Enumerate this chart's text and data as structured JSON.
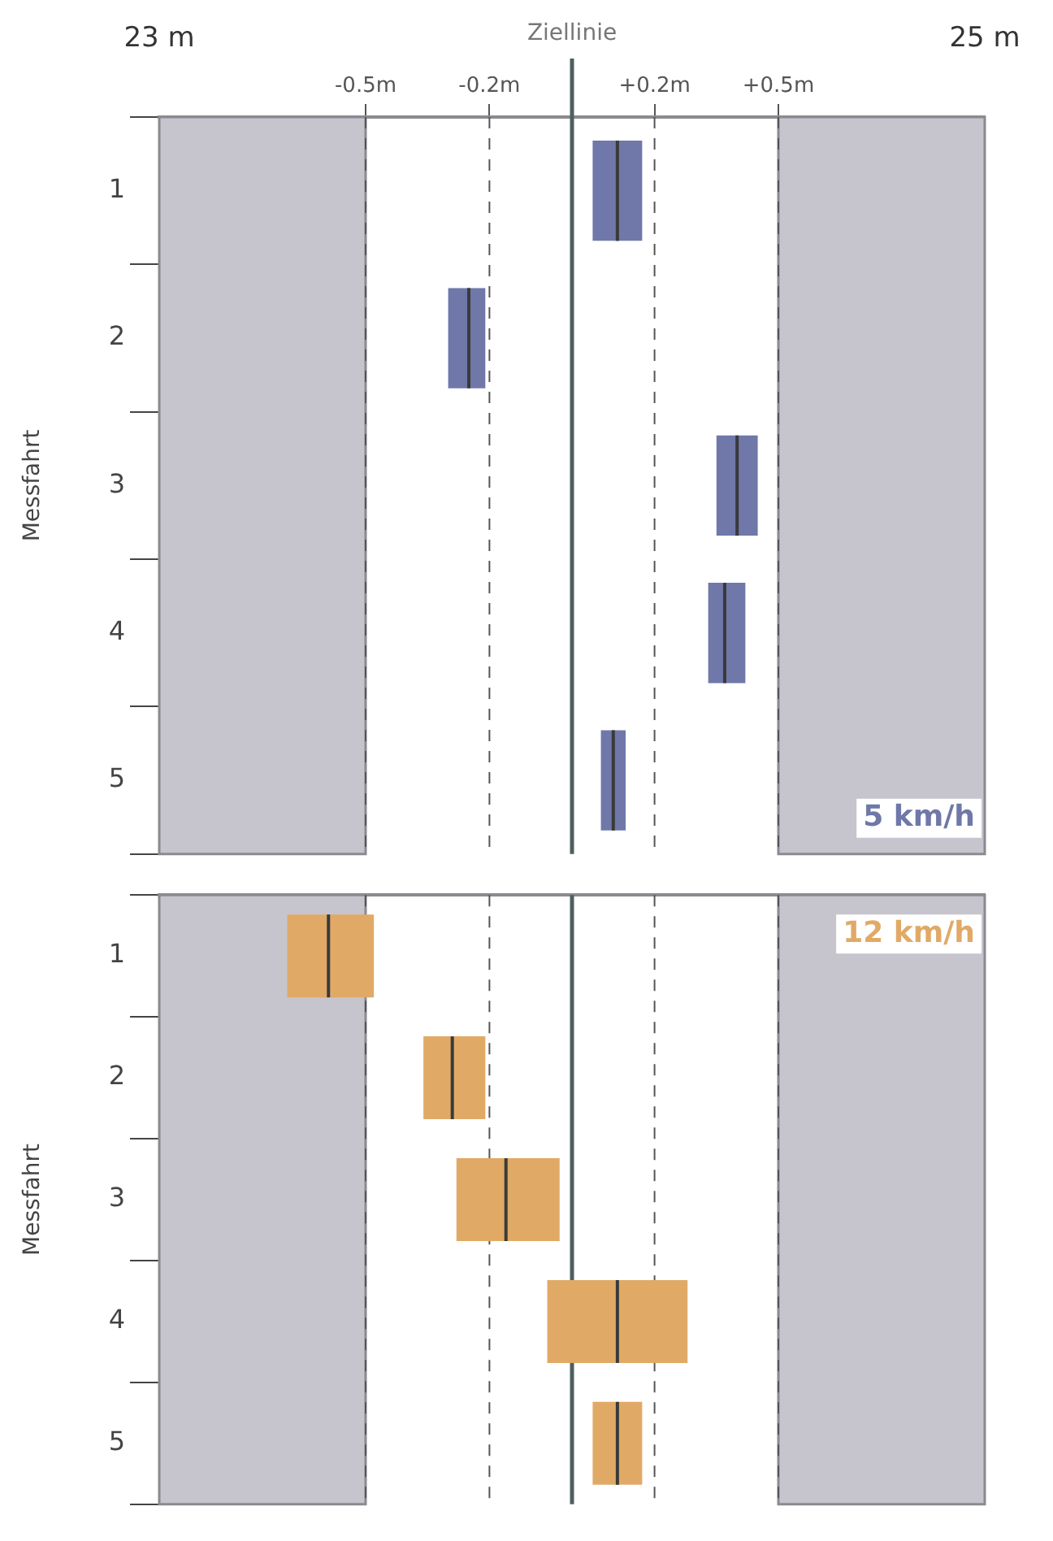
{
  "chart_data": [
    {
      "type": "box",
      "orientation": "horizontal",
      "ylabel": "Messfahrt",
      "categories": [
        "1",
        "2",
        "3",
        "4",
        "5"
      ],
      "series": [
        {
          "name": "5 km/h",
          "color": "#6f78a8",
          "boxes": [
            {
              "low": 0.05,
              "q1": 0.05,
              "median": 0.11,
              "q3": 0.17,
              "high": 0.17
            },
            {
              "low": -0.3,
              "q1": -0.3,
              "median": -0.25,
              "q3": -0.21,
              "high": -0.21
            },
            {
              "low": 0.35,
              "q1": 0.35,
              "median": 0.4,
              "q3": 0.45,
              "high": 0.45
            },
            {
              "low": 0.33,
              "q1": 0.33,
              "median": 0.37,
              "q3": 0.42,
              "high": 0.42
            },
            {
              "low": 0.07,
              "q1": 0.07,
              "median": 0.1,
              "q3": 0.13,
              "high": 0.13
            }
          ]
        }
      ],
      "xlim": [
        -1,
        1
      ],
      "xticks": [
        {
          "value": -0.5,
          "label": "-0.5m"
        },
        {
          "value": -0.2,
          "label": "-0.2m"
        },
        {
          "value": 0.2,
          "label": "+0.2m"
        },
        {
          "value": 0.5,
          "label": "+0.5m"
        }
      ],
      "x2lim": [
        23,
        25
      ],
      "x2ticks": [
        {
          "value": 23,
          "label": "23 m"
        },
        {
          "value": 25,
          "label": "25 m"
        }
      ],
      "grid": "x",
      "ref_lines": [
        {
          "axis": "x",
          "value": 0,
          "label": "Ziellinie",
          "color": "#4f5f5f"
        }
      ],
      "bands": [
        {
          "axis": "x",
          "from": -1,
          "to": -0.5,
          "color": "#c6c5ce"
        },
        {
          "axis": "x",
          "from": 0.5,
          "to": 1,
          "color": "#c6c5ce"
        }
      ]
    },
    {
      "type": "box",
      "orientation": "horizontal",
      "ylabel": "Messfahrt",
      "categories": [
        "1",
        "2",
        "3",
        "4",
        "5"
      ],
      "series": [
        {
          "name": "12 km/h",
          "color": "#e0aa66",
          "boxes": [
            {
              "low": -0.69,
              "q1": -0.69,
              "median": -0.59,
              "q3": -0.48,
              "high": -0.48
            },
            {
              "low": -0.36,
              "q1": -0.36,
              "median": -0.29,
              "q3": -0.21,
              "high": -0.21
            },
            {
              "low": -0.28,
              "q1": -0.28,
              "median": -0.16,
              "q3": -0.03,
              "high": -0.03
            },
            {
              "low": -0.06,
              "q1": -0.06,
              "median": 0.11,
              "q3": 0.28,
              "high": 0.28
            },
            {
              "low": 0.05,
              "q1": 0.05,
              "median": 0.11,
              "q3": 0.17,
              "high": 0.17
            }
          ]
        }
      ],
      "xlim": [
        -1,
        1
      ],
      "xticks": [
        {
          "value": -0.5,
          "label": null
        },
        {
          "value": -0.2,
          "label": null
        },
        {
          "value": 0.2,
          "label": null
        },
        {
          "value": 0.5,
          "label": null
        }
      ],
      "tick_labels": "y",
      "grid": "x",
      "ref_lines": [
        {
          "axis": "x",
          "value": 0,
          "color": "#4f5f5f"
        }
      ],
      "bands": [
        {
          "axis": "x",
          "from": -1,
          "to": -0.5,
          "color": "#c6c5ce"
        },
        {
          "axis": "x",
          "from": 0.5,
          "to": 1,
          "color": "#c6c5ce"
        }
      ]
    }
  ]
}
